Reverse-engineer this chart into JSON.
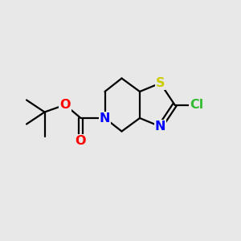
{
  "bg_color": "#e8e8e8",
  "atom_colors": {
    "S": "#cccc00",
    "N": "#0000ff",
    "O": "#ff0000",
    "Cl": "#33bb33",
    "C": "#000000"
  },
  "figsize": [
    3.0,
    3.0
  ],
  "dpi": 100
}
